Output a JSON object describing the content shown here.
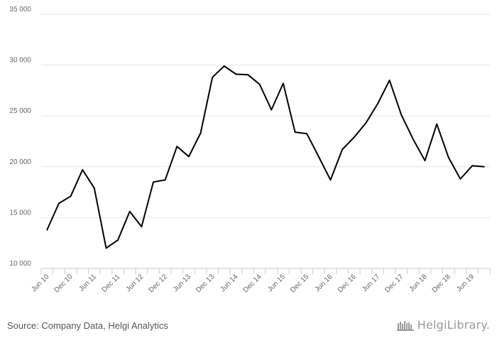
{
  "chart_data": {
    "type": "line",
    "title": "",
    "xlabel": "",
    "ylabel": "",
    "ylim": [
      10000,
      35000
    ],
    "y_ticks": [
      10000,
      15000,
      20000,
      25000,
      30000,
      35000
    ],
    "y_tick_labels": [
      "10 000",
      "15 000",
      "20 000",
      "25 000",
      "30 000",
      "35 000"
    ],
    "x_tick_labels": [
      "Jun 10",
      "Dec 10",
      "Jun 11",
      "Dec 11",
      "Jun 12",
      "Dec 12",
      "Jun 13",
      "Dec 13",
      "Jun 14",
      "Dec 14",
      "Jun 15",
      "Dec 15",
      "Jun 16",
      "Dec 16",
      "Jun 17",
      "Dec 17",
      "Jun 18",
      "Dec 18",
      "Jun 19"
    ],
    "x": [
      "Jun 10",
      "Sep 10",
      "Dec 10",
      "Mar 11",
      "Jun 11",
      "Sep 11",
      "Dec 11",
      "Mar 12",
      "Jun 12",
      "Sep 12",
      "Dec 12",
      "Mar 13",
      "Jun 13",
      "Sep 13",
      "Dec 13",
      "Mar 14",
      "Jun 14",
      "Sep 14",
      "Dec 14",
      "Mar 15",
      "Jun 15",
      "Sep 15",
      "Dec 15",
      "Mar 16",
      "Jun 16",
      "Sep 16",
      "Dec 16",
      "Mar 17",
      "Jun 17",
      "Sep 17",
      "Dec 17",
      "Mar 18",
      "Jun 18",
      "Sep 18",
      "Dec 18",
      "Mar 19",
      "Jun 19",
      "Sep 19"
    ],
    "series": [
      {
        "values": [
          13800,
          16400,
          17100,
          19700,
          17900,
          12000,
          12800,
          15600,
          14100,
          18500,
          18700,
          22000,
          21000,
          23300,
          28800,
          29900,
          29100,
          29050,
          28100,
          25600,
          28200,
          23400,
          23250,
          21000,
          18700,
          21700,
          22900,
          24300,
          26200,
          28500,
          25100,
          22700,
          20600,
          24200,
          20900,
          18800,
          20100,
          20000
        ],
        "color": "#000000"
      }
    ],
    "grid": true,
    "gridline_color": "#e5e5e5"
  },
  "footer": {
    "source": "Source: Company Data, Helgi Analytics",
    "brand": "HelgiLibrary."
  }
}
